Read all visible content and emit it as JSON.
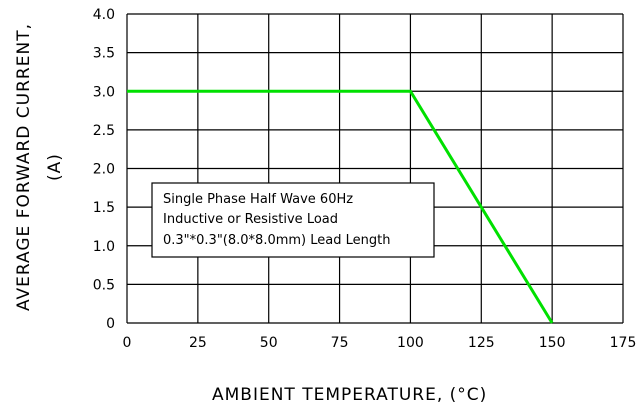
{
  "chart_data": {
    "type": "line",
    "xlabel": "AMBIENT TEMPERATURE, (°C)",
    "ylabel_line1": "AVERAGE FORWARD CURRENT,",
    "ylabel_line2": "(A)",
    "xlim": [
      0,
      175
    ],
    "ylim": [
      0,
      4.0
    ],
    "x_ticks": [
      0,
      25,
      50,
      75,
      100,
      125,
      150,
      175
    ],
    "x_tick_labels": [
      "0",
      "25",
      "50",
      "75",
      "100",
      "125",
      "150",
      "175"
    ],
    "y_ticks": [
      0,
      0.5,
      1.0,
      1.5,
      2.0,
      2.5,
      3.0,
      3.5,
      4.0
    ],
    "y_tick_labels": [
      "0",
      "0.5",
      "1.0",
      "1.5",
      "2.0",
      "2.5",
      "3.0",
      "3.5",
      "4.0"
    ],
    "grid": true,
    "series": [
      {
        "color": "#00e000",
        "x": [
          0,
          100,
          150
        ],
        "y": [
          3.0,
          3.0,
          0
        ]
      }
    ],
    "annotation": {
      "lines": [
        "Single Phase Half Wave 60Hz",
        "Inductive or Resistive Load",
        "0.3\"*0.3\"(8.0*8.0mm) Lead Length"
      ]
    }
  }
}
